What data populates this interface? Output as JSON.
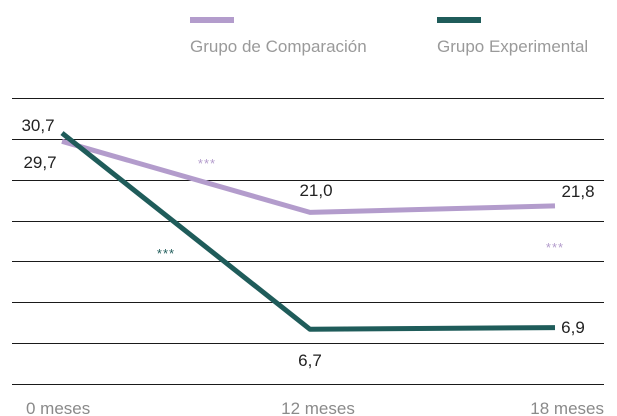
{
  "chart_data": {
    "type": "line",
    "title": "",
    "xlabel": "",
    "ylabel": "",
    "categories": [
      "0 meses",
      "12 meses",
      "18 meses"
    ],
    "ylim": [
      0,
      35
    ],
    "grid": true,
    "legend_position": "top-right",
    "series": [
      {
        "name": "Grupo de Comparación",
        "color": "#b39ccc",
        "values": [
          29.7,
          21.0,
          21.8
        ],
        "labels": [
          "29,7",
          "21,0",
          "21,8"
        ],
        "significance": [
          "***",
          "***"
        ]
      },
      {
        "name": "Grupo Experimental",
        "color": "#1f5c5a",
        "values": [
          30.7,
          6.7,
          6.9
        ],
        "labels": [
          "30,7",
          "6,7",
          "6,9"
        ],
        "significance": [
          "***"
        ]
      }
    ]
  }
}
